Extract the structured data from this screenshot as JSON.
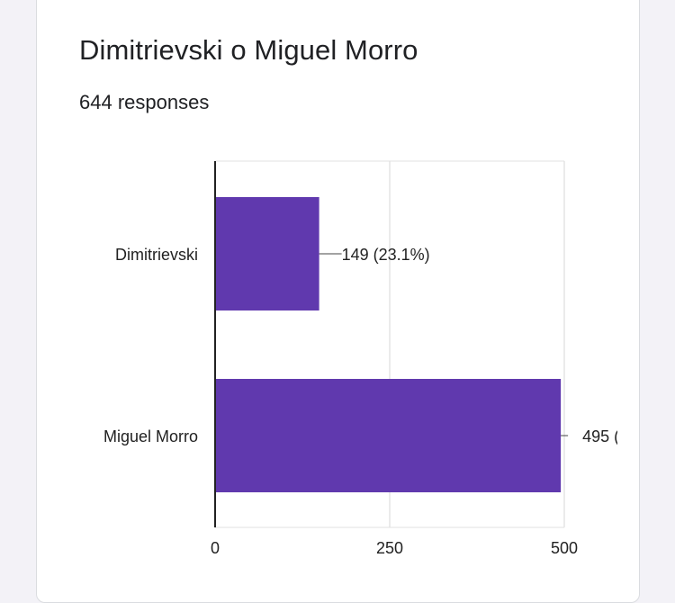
{
  "card": {
    "title": "Dimitrievski o Miguel Morro",
    "responses": "644 responses"
  },
  "colors": {
    "bar": "#6039ae",
    "grid": "#e0e0e0",
    "axis": "#222222"
  },
  "chart_data": {
    "type": "bar",
    "orientation": "horizontal",
    "categories": [
      "Dimitrievski",
      "Miguel Morro"
    ],
    "values": [
      149,
      495
    ],
    "data_labels": [
      "149 (23.1%)",
      "495 ("
    ],
    "xlim": [
      0,
      500
    ],
    "x_ticks": [
      "0",
      "250",
      "500"
    ],
    "grid": true
  }
}
